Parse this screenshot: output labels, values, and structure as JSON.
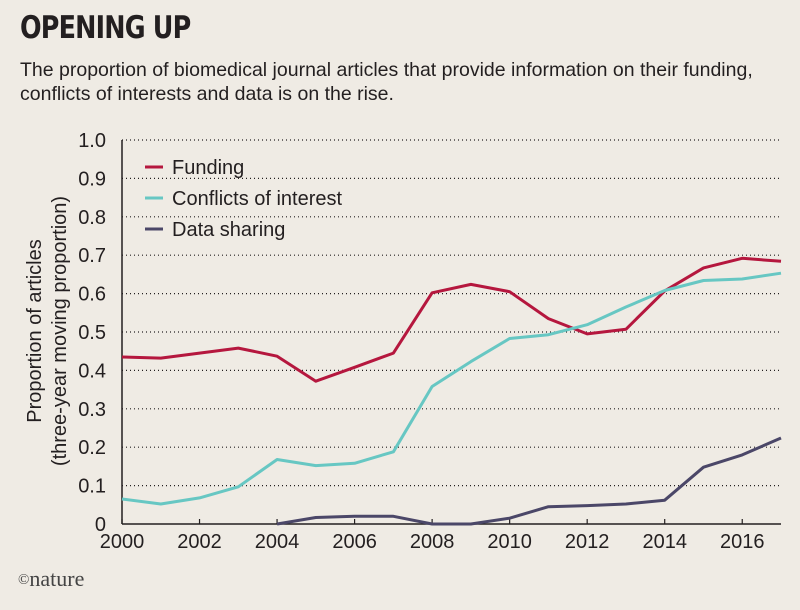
{
  "title": "OPENING UP",
  "subtitle": "The proportion of biomedical journal articles that provide information on their funding, conflicts of interests and data is on the rise.",
  "credit": {
    "symbol": "©",
    "text": "nature"
  },
  "chart_data": {
    "type": "line",
    "ylabel_line1": "Proportion of articles",
    "ylabel_line2": "(three-year moving proportion)",
    "xlabel": "",
    "xlim": [
      2000,
      2017
    ],
    "ylim": [
      0,
      1.0
    ],
    "x_ticks": [
      2000,
      2002,
      2004,
      2006,
      2008,
      2010,
      2012,
      2014,
      2016
    ],
    "y_ticks": [
      0,
      0.1,
      0.2,
      0.3,
      0.4,
      0.5,
      0.6,
      0.7,
      0.8,
      0.9,
      1.0
    ],
    "y_tick_labels": [
      "0",
      "0.1",
      "0.2",
      "0.3",
      "0.4",
      "0.5",
      "0.6",
      "0.7",
      "0.8",
      "0.9",
      "1.0"
    ],
    "grid": "horizontal dotted",
    "legend_position": "top-left",
    "x": [
      2000,
      2001,
      2002,
      2003,
      2004,
      2005,
      2006,
      2007,
      2008,
      2009,
      2010,
      2011,
      2012,
      2013,
      2014,
      2015,
      2016,
      2017
    ],
    "series": [
      {
        "name": "Funding",
        "color": "#b5173e",
        "values": [
          0.435,
          0.432,
          0.445,
          0.458,
          0.437,
          0.372,
          0.408,
          0.445,
          0.602,
          0.624,
          0.605,
          0.535,
          0.495,
          0.507,
          0.607,
          0.667,
          0.692,
          0.684
        ]
      },
      {
        "name": "Conflicts of interest",
        "color": "#67c7c3",
        "values": [
          0.065,
          0.052,
          0.068,
          0.097,
          0.168,
          0.152,
          0.158,
          0.188,
          0.358,
          0.423,
          0.483,
          0.493,
          0.519,
          0.565,
          0.608,
          0.634,
          0.638,
          0.653
        ]
      },
      {
        "name": "Data sharing",
        "color": "#4b4768",
        "values": [
          null,
          null,
          null,
          null,
          0.0,
          0.017,
          0.02,
          0.02,
          0.0,
          0.0,
          0.015,
          0.045,
          0.048,
          0.052,
          0.062,
          0.148,
          0.18,
          0.224
        ]
      }
    ]
  }
}
